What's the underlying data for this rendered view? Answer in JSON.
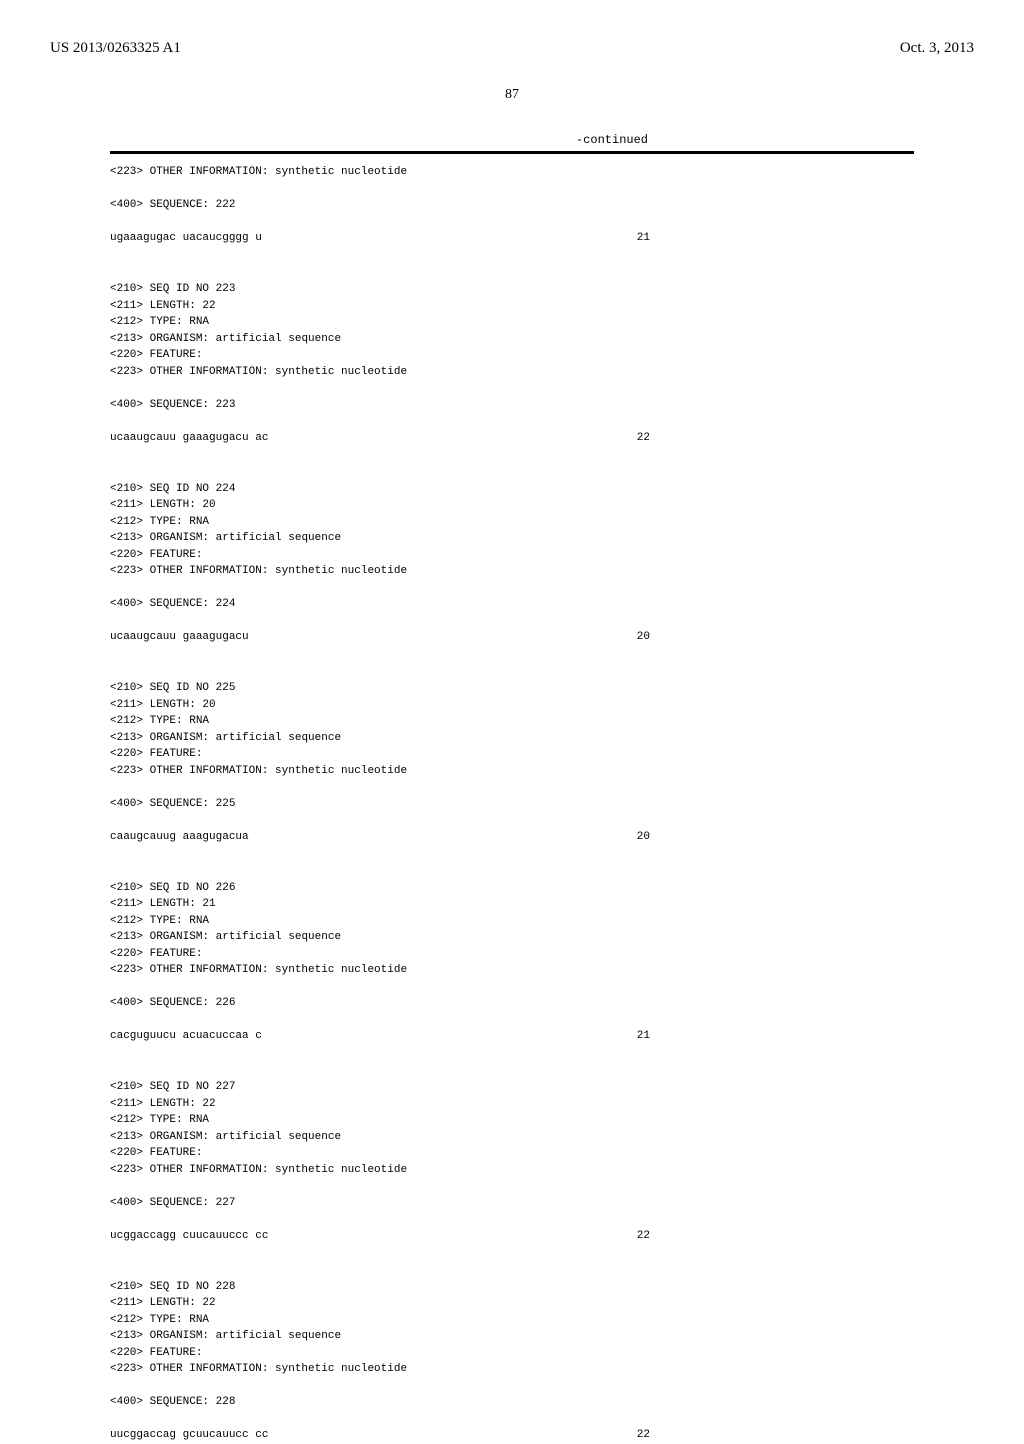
{
  "header": {
    "pub_number": "US 2013/0263325 A1",
    "pub_date": "Oct. 3, 2013"
  },
  "page_number": "87",
  "continued_label": "-continued",
  "sequences": [
    {
      "id": "222",
      "length": null,
      "type": null,
      "organism": null,
      "feature": null,
      "other_info_continuation": "<223> OTHER INFORMATION: synthetic nucleotide",
      "seq_label": "<400> SEQUENCE: 222",
      "seq_data": "ugaaagugac uacaucgggg u",
      "seq_length": "21"
    },
    {
      "id": "223",
      "length": "22",
      "type": "RNA",
      "organism": "artificial sequence",
      "feature": "",
      "other_info": "synthetic nucleotide",
      "seq_label": "<400> SEQUENCE: 223",
      "seq_data": "ucaaugcauu gaaagugacu ac",
      "seq_length": "22"
    },
    {
      "id": "224",
      "length": "20",
      "type": "RNA",
      "organism": "artificial sequence",
      "feature": "",
      "other_info": "synthetic nucleotide",
      "seq_label": "<400> SEQUENCE: 224",
      "seq_data": "ucaaugcauu gaaagugacu",
      "seq_length": "20"
    },
    {
      "id": "225",
      "length": "20",
      "type": "RNA",
      "organism": "artificial sequence",
      "feature": "",
      "other_info": "synthetic nucleotide",
      "seq_label": "<400> SEQUENCE: 225",
      "seq_data": "caaugcauug aaagugacua",
      "seq_length": "20"
    },
    {
      "id": "226",
      "length": "21",
      "type": "RNA",
      "organism": "artificial sequence",
      "feature": "",
      "other_info": "synthetic nucleotide",
      "seq_label": "<400> SEQUENCE: 226",
      "seq_data": "cacguguucu acuacuccaa c",
      "seq_length": "21"
    },
    {
      "id": "227",
      "length": "22",
      "type": "RNA",
      "organism": "artificial sequence",
      "feature": "",
      "other_info": "synthetic nucleotide",
      "seq_label": "<400> SEQUENCE: 227",
      "seq_data": "ucggaccagg cuucauuccc cc",
      "seq_length": "22"
    },
    {
      "id": "228",
      "length": "22",
      "type": "RNA",
      "organism": "artificial sequence",
      "feature": "",
      "other_info": "synthetic nucleotide",
      "seq_label": "<400> SEQUENCE: 228",
      "seq_data": "uucggaccag gcuucauucc cc",
      "seq_length": "22"
    }
  ],
  "labels": {
    "seq_id_prefix": "<210> SEQ ID NO ",
    "length_prefix": "<211> LENGTH: ",
    "type_prefix": "<212> TYPE: ",
    "organism_prefix": "<213> ORGANISM: ",
    "feature_prefix": "<220> FEATURE:",
    "other_info_prefix": "<223> OTHER INFORMATION: "
  }
}
